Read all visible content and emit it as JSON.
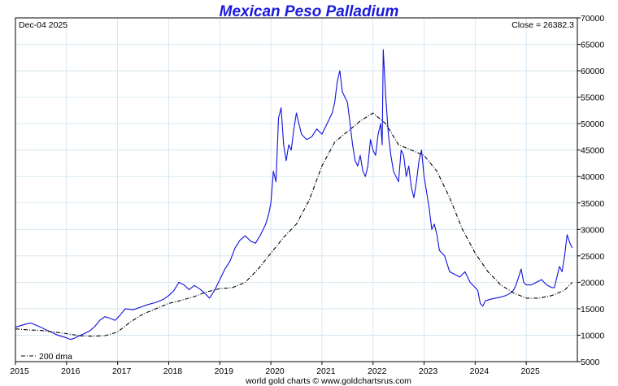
{
  "chart_data": {
    "type": "line",
    "title": "Mexican Peso Palladium",
    "date_label": "Dec-04  2025",
    "close_label": "Close = 26382.3",
    "footer": "world gold charts © www.goldchartsrus.com",
    "legend_label": "200 dma",
    "legend_position": "bottom-left",
    "xlim": [
      2015.0,
      2026.0
    ],
    "ylim": [
      5000,
      70000
    ],
    "x_ticks": [
      "2015",
      "2016",
      "2017",
      "2018",
      "2019",
      "2020",
      "2021",
      "2022",
      "2023",
      "2024",
      "2025"
    ],
    "y_ticks": [
      5000,
      10000,
      15000,
      20000,
      25000,
      30000,
      35000,
      40000,
      45000,
      50000,
      55000,
      60000,
      65000,
      70000
    ],
    "grid": true,
    "colors": {
      "title": "#1a1adc",
      "price": "#1010e0",
      "dma": "#000000",
      "grid": "#cfe2ee"
    },
    "series": [
      {
        "style": "line",
        "x": [
          2015.0,
          2015.1,
          2015.2,
          2015.3,
          2015.4,
          2015.5,
          2015.6,
          2015.7,
          2015.8,
          2015.9,
          2016.0,
          2016.08,
          2016.15,
          2016.25,
          2016.35,
          2016.45,
          2016.55,
          2016.65,
          2016.75,
          2016.85,
          2016.95,
          2017.05,
          2017.15,
          2017.3,
          2017.45,
          2017.6,
          2017.75,
          2017.9,
          2018.0,
          2018.1,
          2018.2,
          2018.3,
          2018.4,
          2018.5,
          2018.6,
          2018.7,
          2018.8,
          2018.9,
          2019.0,
          2019.1,
          2019.2,
          2019.3,
          2019.4,
          2019.5,
          2019.6,
          2019.7,
          2019.8,
          2019.9,
          2019.96,
          2020.0,
          2020.05,
          2020.1,
          2020.15,
          2020.2,
          2020.25,
          2020.3,
          2020.35,
          2020.4,
          2020.45,
          2020.5,
          2020.55,
          2020.6,
          2020.7,
          2020.8,
          2020.9,
          2021.0,
          2021.1,
          2021.2,
          2021.25,
          2021.3,
          2021.35,
          2021.4,
          2021.45,
          2021.5,
          2021.55,
          2021.6,
          2021.65,
          2021.7,
          2021.75,
          2021.8,
          2021.85,
          2021.9,
          2021.95,
          2022.0,
          2022.05,
          2022.1,
          2022.15,
          2022.18,
          2022.2,
          2022.25,
          2022.3,
          2022.35,
          2022.4,
          2022.45,
          2022.5,
          2022.55,
          2022.6,
          2022.65,
          2022.7,
          2022.75,
          2022.8,
          2022.85,
          2022.9,
          2022.95,
          2023.0,
          2023.05,
          2023.1,
          2023.15,
          2023.2,
          2023.25,
          2023.3,
          2023.4,
          2023.5,
          2023.6,
          2023.7,
          2023.8,
          2023.9,
          2024.0,
          2024.05,
          2024.1,
          2024.15,
          2024.2,
          2024.3,
          2024.4,
          2024.5,
          2024.6,
          2024.7,
          2024.75,
          2024.8,
          2024.85,
          2024.9,
          2024.95,
          2025.0,
          2025.1,
          2025.2,
          2025.3,
          2025.4,
          2025.5,
          2025.55,
          2025.6,
          2025.65,
          2025.7,
          2025.75,
          2025.8,
          2025.85,
          2025.9
        ],
        "y": [
          11500,
          11800,
          12100,
          12300,
          11900,
          11500,
          11000,
          10600,
          10100,
          9800,
          9500,
          9200,
          9400,
          9900,
          10300,
          10800,
          11600,
          12800,
          13500,
          13200,
          12800,
          13800,
          15000,
          14800,
          15300,
          15800,
          16200,
          16800,
          17500,
          18400,
          20000,
          19500,
          18600,
          19400,
          18800,
          18000,
          17000,
          18500,
          20500,
          22500,
          24000,
          26500,
          28000,
          28800,
          27800,
          27400,
          29000,
          31000,
          33000,
          35000,
          41000,
          39000,
          51000,
          53000,
          46000,
          43000,
          46000,
          45000,
          49000,
          52000,
          50000,
          48000,
          47000,
          47500,
          49000,
          48000,
          50000,
          52000,
          54000,
          58000,
          60000,
          56000,
          55000,
          54000,
          50000,
          46000,
          43000,
          42000,
          44000,
          41000,
          40000,
          42000,
          47000,
          45000,
          44000,
          48000,
          50000,
          46000,
          64000,
          55000,
          48000,
          44000,
          41000,
          40000,
          39000,
          45000,
          44000,
          40000,
          42000,
          38000,
          36000,
          39000,
          43000,
          45000,
          40000,
          37000,
          34000,
          30000,
          31000,
          29000,
          26000,
          25000,
          22000,
          21500,
          21000,
          22000,
          20000,
          19000,
          18500,
          16000,
          15500,
          16500,
          16800,
          17000,
          17200,
          17500,
          18000,
          18500,
          19500,
          21000,
          22500,
          20000,
          19500,
          19500,
          20000,
          20500,
          19500,
          19000,
          19000,
          21000,
          23000,
          22000,
          25000,
          29000,
          27500,
          26500
        ],
        "name": ""
      },
      {
        "style": "dash-dot",
        "x": [
          2015.0,
          2015.25,
          2015.5,
          2015.75,
          2016.0,
          2016.25,
          2016.5,
          2016.75,
          2017.0,
          2017.25,
          2017.5,
          2017.75,
          2018.0,
          2018.25,
          2018.5,
          2018.75,
          2019.0,
          2019.25,
          2019.5,
          2019.75,
          2020.0,
          2020.25,
          2020.5,
          2020.75,
          2021.0,
          2021.25,
          2021.5,
          2021.75,
          2022.0,
          2022.25,
          2022.5,
          2022.75,
          2023.0,
          2023.25,
          2023.5,
          2023.75,
          2024.0,
          2024.25,
          2024.5,
          2024.75,
          2025.0,
          2025.25,
          2025.5,
          2025.75,
          2025.9
        ],
        "y": [
          11200,
          11000,
          10900,
          10600,
          10300,
          9900,
          9800,
          9900,
          10600,
          12500,
          14000,
          15000,
          16000,
          16600,
          17300,
          18200,
          18800,
          19000,
          20000,
          22500,
          25500,
          28500,
          31000,
          35500,
          42000,
          46500,
          48500,
          50500,
          52000,
          50000,
          46000,
          45000,
          44000,
          41000,
          36000,
          30000,
          25500,
          22000,
          19500,
          18000,
          17000,
          17000,
          17500,
          18500,
          20000
        ],
        "name": "200 dma"
      }
    ]
  }
}
